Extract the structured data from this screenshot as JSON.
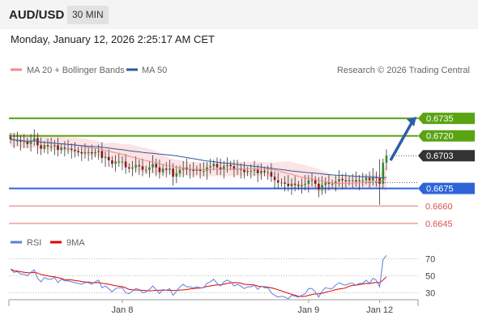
{
  "header": {
    "symbol": "AUD/USD",
    "interval": "30 MIN"
  },
  "datetime": "Monday, January 12, 2026 2:25:17 AM CET",
  "legend": {
    "items": [
      {
        "label": "MA 20 + Bollinger Bands",
        "color": "#f08b8b"
      },
      {
        "label": "MA 50",
        "color": "#2e5a9e"
      }
    ],
    "credit": "Research © 2026 Trading Central"
  },
  "rsi_legend": {
    "items": [
      {
        "label": "RSI",
        "color": "#5b7fd6"
      },
      {
        "label": "9MA",
        "color": "#e00000"
      }
    ]
  },
  "colors": {
    "up": "#2e8b2e",
    "down": "#8b1a1a",
    "resistance": "#5aa313",
    "pivot": "#2f64d8",
    "support": "#e07070",
    "price": "#333333"
  },
  "chart_data": [
    {
      "type": "candlestick",
      "ylim": [
        0.6638,
        0.676
      ],
      "x_ticks": [
        "Jan 8",
        "Jan 9",
        "Jan 12"
      ],
      "last_price": 0.6703,
      "levels": [
        {
          "label": "0.6735",
          "value": 0.6735,
          "kind": "resistance"
        },
        {
          "label": "0.6720",
          "value": 0.672,
          "kind": "resistance"
        },
        {
          "label": "0.6675",
          "value": 0.6675,
          "kind": "pivot"
        },
        {
          "label": "0.6660",
          "value": 0.666,
          "kind": "support"
        },
        {
          "label": "0.6645",
          "value": 0.6645,
          "kind": "support"
        }
      ],
      "close": [
        0.6717,
        0.6716,
        0.6716,
        0.6715,
        0.6715,
        0.6713,
        0.6716,
        0.6718,
        0.6712,
        0.6709,
        0.6712,
        0.6711,
        0.6711,
        0.6712,
        0.6708,
        0.671,
        0.6709,
        0.6709,
        0.6708,
        0.6707,
        0.6706,
        0.6705,
        0.6706,
        0.6706,
        0.6705,
        0.6706,
        0.6707,
        0.6701,
        0.6702,
        0.6699,
        0.6696,
        0.6698,
        0.6698,
        0.6698,
        0.6693,
        0.6692,
        0.6693,
        0.6695,
        0.6694,
        0.6691,
        0.6691,
        0.6693,
        0.6696,
        0.6693,
        0.6689,
        0.6692,
        0.6691,
        0.6692,
        0.6685,
        0.6688,
        0.6691,
        0.6693,
        0.6691,
        0.6691,
        0.669,
        0.6691,
        0.669,
        0.669,
        0.6693,
        0.6694,
        0.6696,
        0.6693,
        0.6691,
        0.6694,
        0.6695,
        0.6694,
        0.6691,
        0.6692,
        0.6691,
        0.6689,
        0.669,
        0.669,
        0.6691,
        0.6688,
        0.669,
        0.6689,
        0.6689,
        0.6685,
        0.6682,
        0.668,
        0.668,
        0.6679,
        0.6677,
        0.6679,
        0.6678,
        0.6677,
        0.6678,
        0.6679,
        0.6682,
        0.6682,
        0.6679,
        0.6674,
        0.6678,
        0.668,
        0.6679,
        0.6679,
        0.6681,
        0.6683,
        0.6682,
        0.6681,
        0.6682,
        0.6682,
        0.6681,
        0.6682,
        0.6682,
        0.6684,
        0.6682,
        0.6685,
        0.6684,
        0.6679,
        0.6697,
        0.6703
      ],
      "rsi": {
        "ylim": [
          20,
          80
        ],
        "ticks": [
          70,
          50,
          30
        ],
        "values": [
          58,
          54,
          55,
          52,
          52,
          50,
          54,
          57,
          47,
          43,
          48,
          46,
          46,
          48,
          42,
          46,
          44,
          44,
          43,
          42,
          41,
          40,
          42,
          42,
          40,
          43,
          45,
          36,
          38,
          35,
          31,
          35,
          36,
          36,
          30,
          29,
          32,
          35,
          34,
          30,
          31,
          34,
          38,
          34,
          29,
          34,
          33,
          35,
          27,
          32,
          37,
          40,
          37,
          37,
          36,
          37,
          36,
          36,
          41,
          43,
          46,
          41,
          38,
          43,
          45,
          43,
          38,
          40,
          38,
          35,
          37,
          37,
          39,
          34,
          38,
          36,
          36,
          30,
          27,
          25,
          26,
          25,
          23,
          27,
          26,
          25,
          27,
          29,
          35,
          35,
          31,
          25,
          32,
          36,
          35,
          35,
          39,
          42,
          40,
          39,
          41,
          41,
          39,
          41,
          41,
          45,
          41,
          47,
          45,
          37,
          69,
          74
        ]
      }
    }
  ]
}
